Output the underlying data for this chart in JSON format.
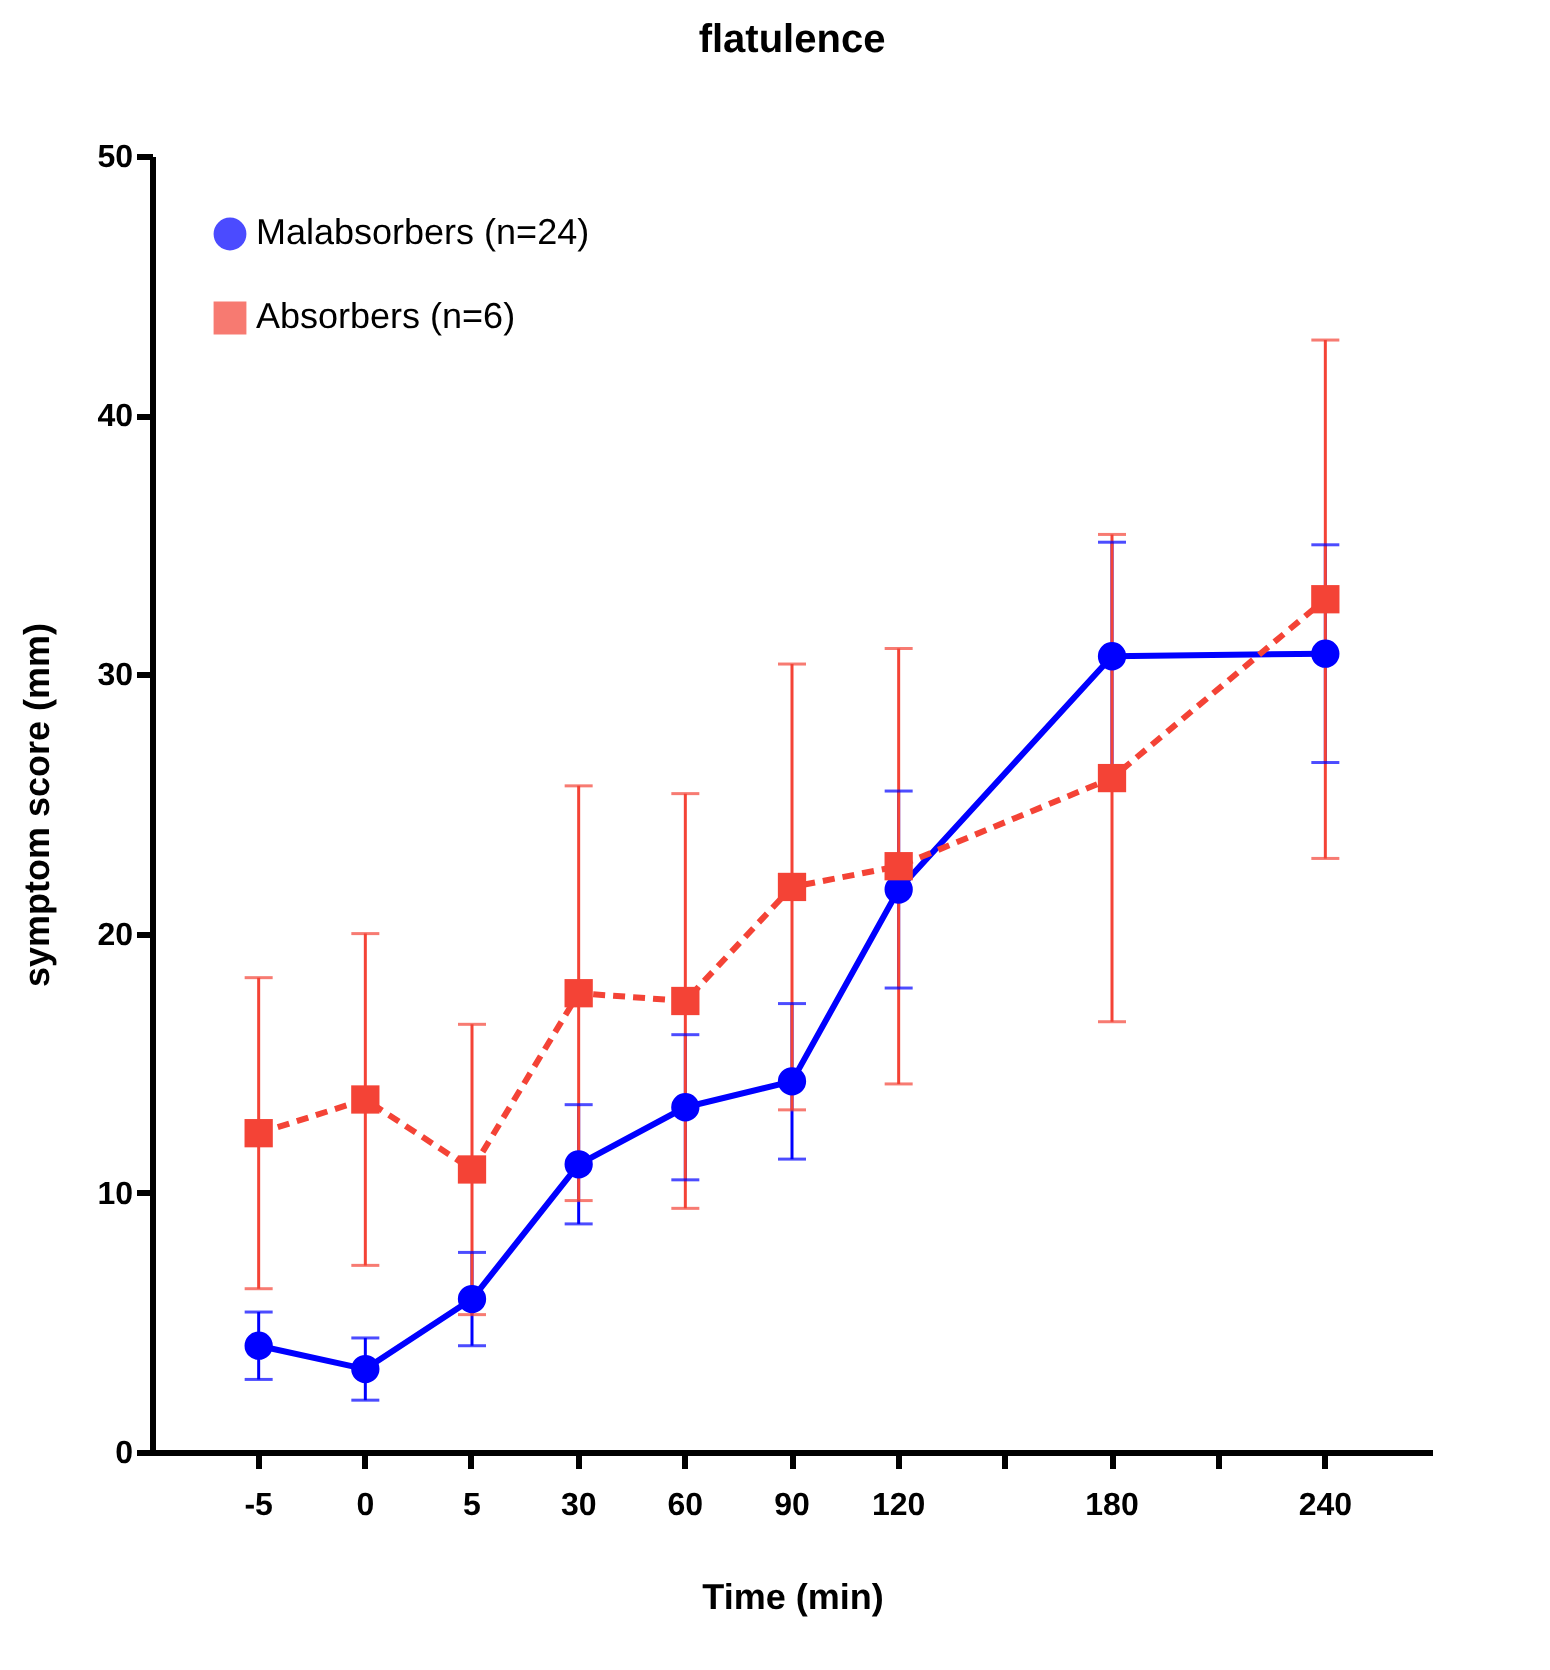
{
  "chart_data": {
    "type": "line",
    "title": "flatulence",
    "xlabel": "Time (min)",
    "ylabel": "symptom score (mm)",
    "categories": [
      "-5",
      "0",
      "5",
      "30",
      "60",
      "90",
      "120",
      null,
      "180",
      null,
      "240"
    ],
    "ylim": [
      0,
      50
    ],
    "yticks": [
      0,
      10,
      20,
      30,
      40,
      50
    ],
    "grid": false,
    "legend": "top left",
    "series": [
      {
        "name": "Malabsorbers (n=24)",
        "color": "#0000ff",
        "marker": "circle",
        "line_style": "solid",
        "values": [
          4.1,
          3.2,
          5.9,
          11.1,
          13.3,
          14.3,
          21.7,
          null,
          30.7,
          null,
          30.8
        ],
        "errors": [
          1.3,
          1.2,
          1.8,
          2.3,
          2.8,
          3.0,
          3.8,
          null,
          4.4,
          null,
          4.2
        ]
      },
      {
        "name": "Absorbers (n=6)",
        "color": "#f44336",
        "marker": "square",
        "line_style": "dashed",
        "values": [
          12.3,
          13.6,
          10.9,
          17.7,
          17.4,
          21.8,
          22.6,
          null,
          26.0,
          null,
          32.9
        ],
        "errors": [
          6.0,
          6.4,
          5.6,
          8.0,
          8.0,
          8.6,
          8.4,
          null,
          9.4,
          null,
          10.0
        ]
      }
    ]
  }
}
